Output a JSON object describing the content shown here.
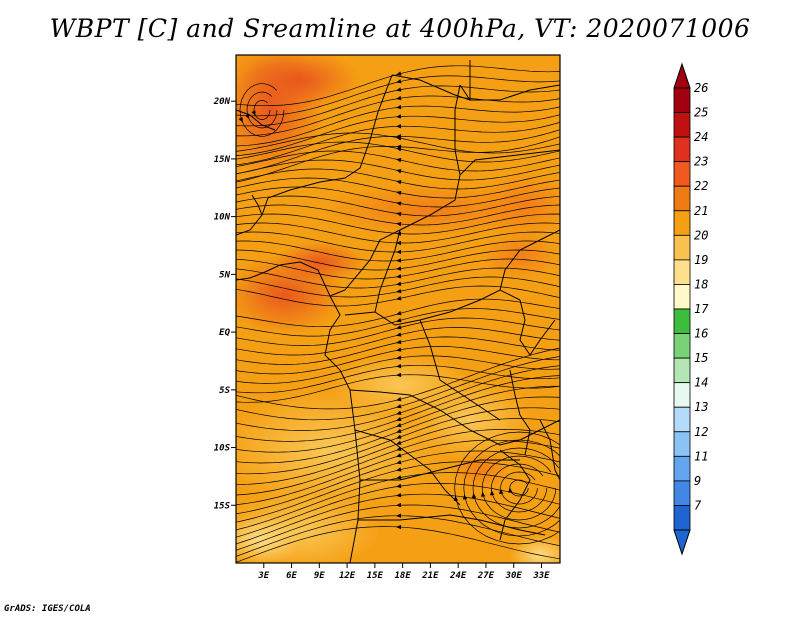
{
  "title": "WBPT [C] and Sreamline at 400hPa, VT: 2020071006",
  "credit": "GrADS: IGES/COLA",
  "map": {
    "lat_range": [
      -20,
      24
    ],
    "lon_range": [
      0,
      35
    ],
    "lat_ticks": [
      {
        "value": 20,
        "label": "20N"
      },
      {
        "value": 15,
        "label": "15N"
      },
      {
        "value": 10,
        "label": "10N"
      },
      {
        "value": 5,
        "label": "5N"
      },
      {
        "value": 0,
        "label": "EQ"
      },
      {
        "value": -5,
        "label": "5S"
      },
      {
        "value": -10,
        "label": "10S"
      },
      {
        "value": -15,
        "label": "15S"
      }
    ],
    "lon_ticks": [
      {
        "value": 3,
        "label": "3E"
      },
      {
        "value": 6,
        "label": "6E"
      },
      {
        "value": 9,
        "label": "9E"
      },
      {
        "value": 12,
        "label": "12E"
      },
      {
        "value": 15,
        "label": "15E"
      },
      {
        "value": 18,
        "label": "18E"
      },
      {
        "value": 21,
        "label": "21E"
      },
      {
        "value": 24,
        "label": "24E"
      },
      {
        "value": 27,
        "label": "27E"
      },
      {
        "value": 30,
        "label": "30E"
      },
      {
        "value": 33,
        "label": "33E"
      }
    ]
  },
  "colorbar": {
    "levels": [
      {
        "label": "26",
        "color": "#a0000f"
      },
      {
        "label": "25",
        "color": "#c0100f"
      },
      {
        "label": "24",
        "color": "#e0301e"
      },
      {
        "label": "23",
        "color": "#f05a1e"
      },
      {
        "label": "22",
        "color": "#f07a14"
      },
      {
        "label": "21",
        "color": "#f5a014"
      },
      {
        "label": "20",
        "color": "#fac050"
      },
      {
        "label": "19",
        "color": "#fde08c"
      },
      {
        "label": "18",
        "color": "#fff8c8"
      },
      {
        "label": "17",
        "color": "#3cbe3c"
      },
      {
        "label": "16",
        "color": "#78d278"
      },
      {
        "label": "15",
        "color": "#b4e6b4"
      },
      {
        "label": "14",
        "color": "#e6f8f0"
      },
      {
        "label": "13",
        "color": "#b4dcfa"
      },
      {
        "label": "12",
        "color": "#8cc3f5"
      },
      {
        "label": "11",
        "color": "#64a5f0"
      },
      {
        "label": "9",
        "color": "#4187e6"
      },
      {
        "label": "7",
        "color": "#1e64d2"
      }
    ]
  }
}
